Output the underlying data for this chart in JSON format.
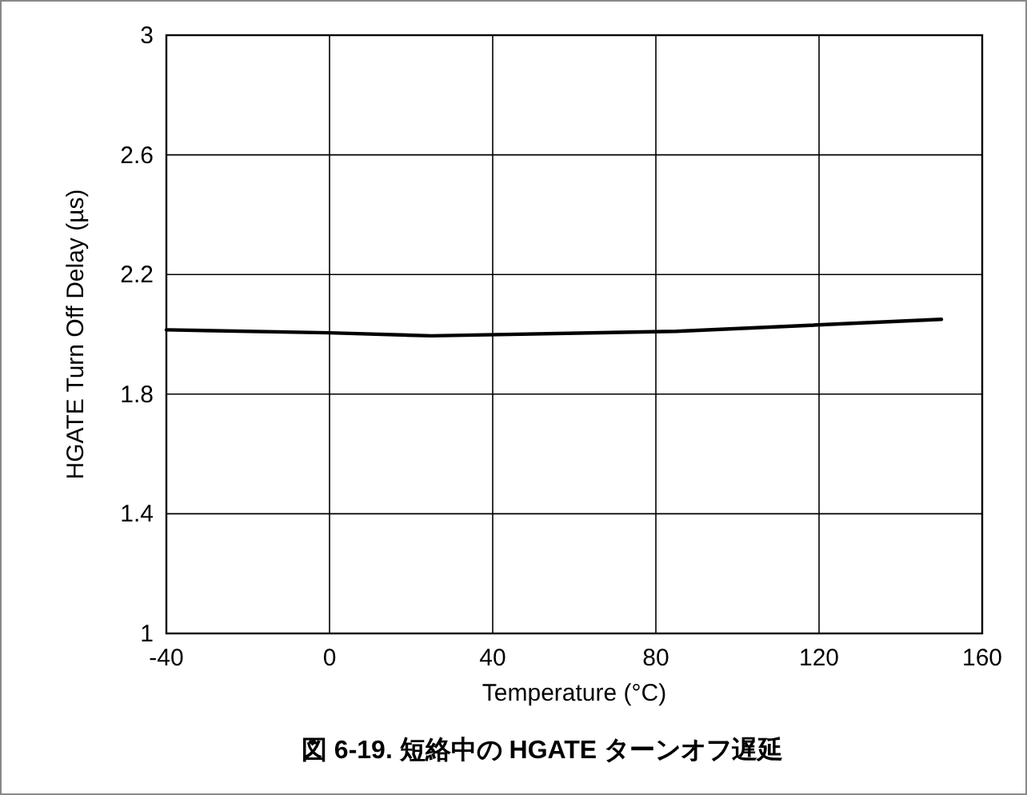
{
  "chart_data": {
    "type": "line",
    "title": "図 6-19. 短絡中の HGATE ターンオフ遅延",
    "xlabel": "Temperature (°C)",
    "ylabel": "HGATE Turn Off Delay (µs)",
    "x": [
      -40,
      0,
      25,
      85,
      150
    ],
    "series": [
      {
        "color": "#000000",
        "values": [
          2.015,
          2.005,
          1.995,
          2.01,
          2.05
        ]
      }
    ],
    "xlim": [
      -40,
      160
    ],
    "xticks": [
      -40,
      0,
      40,
      80,
      120,
      160
    ],
    "ylim": [
      1,
      3
    ],
    "yticks": [
      1,
      1.4,
      1.8,
      2.2,
      2.6,
      3
    ],
    "grid": true,
    "marker": "none",
    "line_style": "solid"
  }
}
